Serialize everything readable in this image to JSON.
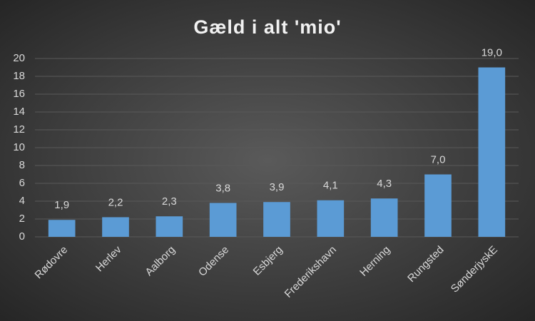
{
  "chart_data": {
    "type": "bar",
    "title": "Gæld i alt 'mio'",
    "categories": [
      "Rødovre",
      "Herlev",
      "Aalborg",
      "Odense",
      "Esbjerg",
      "Frederikshavn",
      "Herning",
      "Rungsted",
      "SønderjyskE"
    ],
    "values": [
      1.9,
      2.2,
      2.3,
      3.8,
      3.9,
      4.1,
      4.3,
      7.0,
      19.0
    ],
    "value_labels": [
      "1,9",
      "2,2",
      "2,3",
      "3,8",
      "3,9",
      "4,1",
      "4,3",
      "7,0",
      "19,0"
    ],
    "color": "#5b9bd5",
    "ylim": [
      0,
      20
    ],
    "yticks": [
      0,
      2,
      4,
      6,
      8,
      10,
      12,
      14,
      16,
      18,
      20
    ],
    "grid": true
  }
}
